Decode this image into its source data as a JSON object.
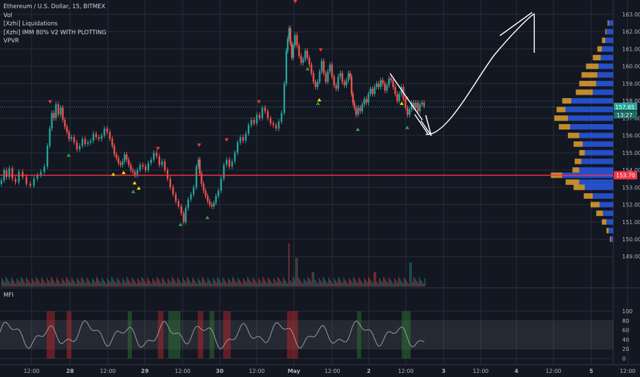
{
  "header": {
    "title": "Ethereum / U.S. Dollar, 15, BITMEX",
    "indicators": [
      "Vol",
      "[Xzhi] Liquidations",
      "[Xzhi] IMM 80% V2 WITH PLOTTING",
      "VPVR"
    ],
    "mfi_label": "MFI"
  },
  "price_axis": {
    "ticks": [
      "163.00",
      "162.00",
      "161.00",
      "160.00",
      "159.00",
      "158.00",
      "157.00",
      "156.00",
      "155.00",
      "154.00",
      "153.00",
      "152.00",
      "151.00",
      "150.00",
      "149.00"
    ],
    "current_price": "157.65",
    "countdown": "13:27",
    "horizontal_level": "153.70"
  },
  "mfi_axis": {
    "ticks": [
      "100",
      "80",
      "60",
      "40",
      "20",
      "0"
    ]
  },
  "time_axis": {
    "labels": [
      "12:00",
      "28",
      "12:00",
      "29",
      "12:00",
      "30",
      "12:00",
      "May",
      "12:00",
      "2",
      "12:00",
      "3",
      "12:00",
      "4",
      "12:00",
      "5",
      "12:00"
    ]
  },
  "colors": {
    "background": "#131722",
    "up": "#26a69a",
    "down": "#ef5350",
    "level_line": "#f23645",
    "current_price": "#26a69a",
    "vpvr_up": "#2962ff",
    "vpvr_down": "#e0a030",
    "signal_green": "#2e9e41",
    "signal_red": "#e53935",
    "signal_yellow": "#f0d000"
  },
  "chart_data": {
    "type": "candlestick",
    "symbol": "ETHUSD",
    "exchange": "BITMEX",
    "interval": "15",
    "ylim": [
      148.6,
      163.4
    ],
    "price_path": [
      [
        0,
        153.2
      ],
      [
        4,
        153.4
      ],
      [
        8,
        154.0
      ],
      [
        11,
        153.6
      ],
      [
        16,
        154.1
      ],
      [
        20,
        153.5
      ],
      [
        25,
        153.3
      ],
      [
        30,
        153.9
      ],
      [
        36,
        153.6
      ],
      [
        41,
        153.2
      ],
      [
        47,
        153.1
      ],
      [
        52,
        153.5
      ],
      [
        57,
        153.7
      ],
      [
        62,
        153.9
      ],
      [
        67,
        154.2
      ],
      [
        71,
        155.4
      ],
      [
        74,
        156.4
      ],
      [
        77,
        157.3
      ],
      [
        80,
        157.0
      ],
      [
        83,
        157.8
      ],
      [
        87,
        157.2
      ],
      [
        90,
        157.6
      ],
      [
        93,
        156.9
      ],
      [
        96,
        156.5
      ],
      [
        99,
        156.2
      ],
      [
        102,
        155.8
      ],
      [
        106,
        155.9
      ],
      [
        110,
        155.6
      ],
      [
        114,
        155.2
      ],
      [
        118,
        155.4
      ],
      [
        122,
        155.8
      ],
      [
        126,
        155.5
      ],
      [
        130,
        155.6
      ],
      [
        134,
        155.7
      ],
      [
        138,
        156.1
      ],
      [
        142,
        155.9
      ],
      [
        146,
        155.8
      ],
      [
        150,
        156.0
      ],
      [
        154,
        156.4
      ],
      [
        158,
        156.2
      ],
      [
        162,
        155.8
      ],
      [
        165,
        155.4
      ],
      [
        168,
        154.9
      ],
      [
        171,
        154.7
      ],
      [
        174,
        154.4
      ],
      [
        177,
        154.3
      ],
      [
        180,
        154.5
      ],
      [
        183,
        154.9
      ],
      [
        186,
        154.6
      ],
      [
        189,
        154.3
      ],
      [
        192,
        154.0
      ],
      [
        195,
        153.9
      ],
      [
        198,
        153.7
      ],
      [
        202,
        154.0
      ],
      [
        206,
        154.3
      ],
      [
        210,
        154.2
      ],
      [
        214,
        154.0
      ],
      [
        218,
        154.4
      ],
      [
        222,
        154.6
      ],
      [
        226,
        155.0
      ],
      [
        230,
        154.8
      ],
      [
        234,
        154.3
      ],
      [
        238,
        154.5
      ],
      [
        242,
        154.0
      ],
      [
        246,
        153.5
      ],
      [
        250,
        153.0
      ],
      [
        254,
        152.6
      ],
      [
        258,
        152.2
      ],
      [
        262,
        151.9
      ],
      [
        266,
        151.5
      ],
      [
        269,
        151.0
      ],
      [
        272,
        151.8
      ],
      [
        276,
        152.3
      ],
      [
        280,
        152.6
      ],
      [
        284,
        153.0
      ],
      [
        288,
        154.2
      ],
      [
        290,
        154.6
      ],
      [
        292,
        153.8
      ],
      [
        295,
        153.2
      ],
      [
        298,
        152.8
      ],
      [
        301,
        152.5
      ],
      [
        304,
        152.2
      ],
      [
        307,
        152.0
      ],
      [
        310,
        151.9
      ],
      [
        313,
        152.1
      ],
      [
        316,
        152.5
      ],
      [
        320,
        152.8
      ],
      [
        324,
        153.5
      ],
      [
        328,
        154.3
      ],
      [
        332,
        154.6
      ],
      [
        336,
        154.2
      ],
      [
        340,
        154.5
      ],
      [
        344,
        155.0
      ],
      [
        348,
        155.6
      ],
      [
        352,
        155.9
      ],
      [
        356,
        155.7
      ],
      [
        360,
        156.1
      ],
      [
        364,
        156.6
      ],
      [
        368,
        156.9
      ],
      [
        372,
        156.7
      ],
      [
        376,
        157.2
      ],
      [
        380,
        157.0
      ],
      [
        384,
        157.6
      ],
      [
        388,
        157.4
      ],
      [
        392,
        157.0
      ],
      [
        396,
        156.7
      ],
      [
        400,
        156.6
      ],
      [
        404,
        156.4
      ],
      [
        408,
        156.8
      ],
      [
        412,
        157.3
      ],
      [
        416,
        159.0
      ],
      [
        418,
        160.9
      ],
      [
        420,
        161.6
      ],
      [
        422,
        162.2
      ],
      [
        424,
        161.3
      ],
      [
        426,
        160.5
      ],
      [
        428,
        161.2
      ],
      [
        431,
        161.8
      ],
      [
        434,
        161.2
      ],
      [
        437,
        160.6
      ],
      [
        440,
        160.2
      ],
      [
        443,
        160.4
      ],
      [
        446,
        160.9
      ],
      [
        449,
        160.5
      ],
      [
        452,
        160.1
      ],
      [
        455,
        159.6
      ],
      [
        458,
        159.1
      ],
      [
        461,
        158.8
      ],
      [
        464,
        159.1
      ],
      [
        467,
        159.7
      ],
      [
        470,
        160.3
      ],
      [
        473,
        159.6
      ],
      [
        476,
        159.1
      ],
      [
        479,
        159.7
      ],
      [
        482,
        160.1
      ],
      [
        485,
        159.4
      ],
      [
        488,
        158.9
      ],
      [
        491,
        158.7
      ],
      [
        494,
        159.4
      ],
      [
        497,
        159.6
      ],
      [
        500,
        159.1
      ],
      [
        503,
        158.9
      ],
      [
        506,
        159.2
      ],
      [
        509,
        159.6
      ],
      [
        511,
        159.4
      ],
      [
        513,
        158.4
      ],
      [
        515,
        157.9
      ],
      [
        517,
        157.6
      ],
      [
        520,
        157.2
      ],
      [
        523,
        157.6
      ],
      [
        526,
        157.4
      ],
      [
        529,
        157.8
      ],
      [
        532,
        158.1
      ],
      [
        535,
        157.9
      ],
      [
        538,
        158.4
      ],
      [
        541,
        158.7
      ],
      [
        544,
        158.4
      ],
      [
        547,
        158.8
      ],
      [
        550,
        159.0
      ],
      [
        553,
        158.8
      ],
      [
        556,
        159.2
      ],
      [
        559,
        159.0
      ],
      [
        562,
        158.6
      ],
      [
        565,
        158.9
      ],
      [
        568,
        159.3
      ],
      [
        571,
        159.2
      ],
      [
        574,
        158.8
      ],
      [
        577,
        158.4
      ],
      [
        580,
        158.0
      ],
      [
        583,
        158.4
      ],
      [
        586,
        158.8
      ],
      [
        589,
        158.1
      ],
      [
        592,
        157.6
      ],
      [
        595,
        157.2
      ],
      [
        598,
        157.5
      ],
      [
        601,
        157.9
      ],
      [
        604,
        157.6
      ],
      [
        607,
        157.9
      ],
      [
        610,
        157.4
      ],
      [
        613,
        157.8
      ],
      [
        616,
        157.9
      ],
      [
        619,
        157.7
      ]
    ],
    "horizontal_level": 153.7,
    "current_price": 157.65,
    "volume_spikes": [
      [
        420,
        0.9
      ],
      [
        431,
        0.6
      ],
      [
        597,
        0.5
      ],
      [
        455,
        0.3
      ],
      [
        545,
        0.3
      ]
    ],
    "mfi": {
      "ylim": [
        0,
        100
      ],
      "band": [
        20,
        80
      ]
    },
    "vpvr_max_width_note": "volume profile widths relative (0-1)",
    "vpvr": [
      [
        162.5,
        0.05,
        0.04
      ],
      [
        162.0,
        0.07,
        0.06
      ],
      [
        161.5,
        0.1,
        0.07
      ],
      [
        161.0,
        0.14,
        0.1
      ],
      [
        160.5,
        0.18,
        0.11
      ],
      [
        160.0,
        0.24,
        0.13
      ],
      [
        159.5,
        0.28,
        0.14
      ],
      [
        159.0,
        0.3,
        0.15
      ],
      [
        158.5,
        0.33,
        0.18
      ],
      [
        158.0,
        0.45,
        0.37
      ],
      [
        157.5,
        0.5,
        0.42
      ],
      [
        157.0,
        0.52,
        0.4
      ],
      [
        156.5,
        0.48,
        0.38
      ],
      [
        156.0,
        0.4,
        0.3
      ],
      [
        155.5,
        0.35,
        0.27
      ],
      [
        155.0,
        0.3,
        0.25
      ],
      [
        154.5,
        0.34,
        0.28
      ],
      [
        154.0,
        0.36,
        0.3
      ],
      [
        153.7,
        0.55,
        0.45
      ],
      [
        153.3,
        0.42,
        0.3
      ],
      [
        153.0,
        0.35,
        0.25
      ],
      [
        152.5,
        0.26,
        0.18
      ],
      [
        152.0,
        0.2,
        0.12
      ],
      [
        151.5,
        0.15,
        0.09
      ],
      [
        151.0,
        0.1,
        0.06
      ],
      [
        150.5,
        0.06,
        0.04
      ],
      [
        150.0,
        0.03,
        0.02
      ]
    ],
    "signals_green": [
      [
        100,
        155.2
      ],
      [
        194,
        153.1
      ],
      [
        263,
        151.2
      ],
      [
        302,
        151.6
      ],
      [
        448,
        160.2
      ],
      [
        463,
        158.2
      ],
      [
        521,
        156.7
      ],
      [
        593,
        156.8
      ]
    ],
    "signals_red": [
      [
        73,
        157.6
      ],
      [
        230,
        154.9
      ],
      [
        290,
        155.1
      ],
      [
        330,
        155.4
      ],
      [
        377,
        157.6
      ],
      [
        430,
        163.4
      ],
      [
        467,
        160.6
      ],
      [
        592,
        157.8
      ]
    ],
    "signals_yellow": [
      [
        165,
        154.1
      ],
      [
        180,
        154.2
      ],
      [
        196,
        153.6
      ],
      [
        202,
        153.3
      ],
      [
        465,
        158.4
      ],
      [
        585,
        158.2
      ]
    ]
  }
}
